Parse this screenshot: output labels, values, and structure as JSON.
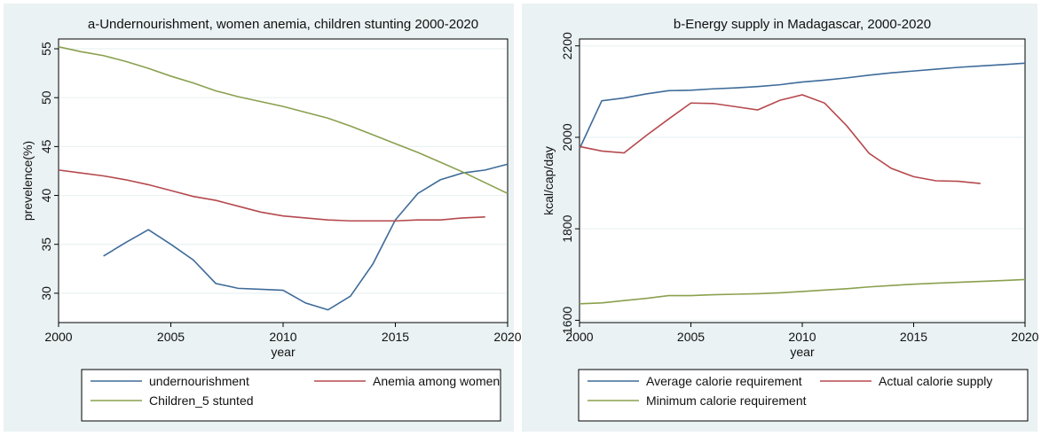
{
  "chart_data": [
    {
      "type": "line",
      "title": "a-Undernourishment, women anemia, children stunting 2000-2020",
      "xlabel": "year",
      "ylabel": "prevelence(%)",
      "xlim": [
        2000,
        2020
      ],
      "ylim": [
        27,
        56
      ],
      "xticks": [
        2000,
        2005,
        2010,
        2015,
        2020
      ],
      "yticks": [
        30,
        35,
        40,
        45,
        50,
        55
      ],
      "grid": true,
      "legend_position": "bottom",
      "legend_columns": 2,
      "series": [
        {
          "name": "undernourishment",
          "color": "#3e6b99",
          "x": [
            2002,
            2003,
            2004,
            2005,
            2006,
            2007,
            2008,
            2009,
            2010,
            2011,
            2012,
            2013,
            2014,
            2015,
            2016,
            2017,
            2018,
            2019,
            2020
          ],
          "y": [
            33.8,
            35.2,
            36.5,
            35.0,
            33.4,
            31.0,
            30.5,
            30.4,
            30.3,
            29.0,
            28.3,
            29.7,
            33.0,
            37.5,
            40.2,
            41.6,
            42.3,
            42.6,
            43.2
          ]
        },
        {
          "name": "Anemia among women",
          "color": "#b5494e",
          "x": [
            2000,
            2001,
            2002,
            2003,
            2004,
            2005,
            2006,
            2007,
            2008,
            2009,
            2010,
            2011,
            2012,
            2013,
            2014,
            2015,
            2016,
            2017,
            2018,
            2019
          ],
          "y": [
            42.6,
            42.3,
            42.0,
            41.6,
            41.1,
            40.5,
            39.9,
            39.5,
            38.9,
            38.3,
            37.9,
            37.7,
            37.5,
            37.4,
            37.4,
            37.4,
            37.5,
            37.5,
            37.7,
            37.8
          ]
        },
        {
          "name": "Children_5 stunted",
          "color": "#8aa04e",
          "x": [
            2000,
            2001,
            2002,
            2003,
            2004,
            2005,
            2006,
            2007,
            2008,
            2009,
            2010,
            2011,
            2012,
            2013,
            2014,
            2015,
            2016,
            2017,
            2018,
            2019,
            2020
          ],
          "y": [
            55.2,
            54.7,
            54.3,
            53.7,
            53.0,
            52.2,
            51.5,
            50.7,
            50.1,
            49.6,
            49.1,
            48.5,
            47.9,
            47.1,
            46.2,
            45.3,
            44.4,
            43.4,
            42.4,
            41.3,
            40.2
          ]
        }
      ]
    },
    {
      "type": "line",
      "title": "b-Energy supply in Madagascar, 2000-2020",
      "xlabel": "year",
      "ylabel": "kcal/cap/day",
      "xlim": [
        2000,
        2020
      ],
      "ylim": [
        1595,
        2215
      ],
      "xticks": [
        2000,
        2005,
        2010,
        2015,
        2020
      ],
      "yticks": [
        1600,
        1800,
        2000,
        2200
      ],
      "grid": true,
      "legend_position": "bottom",
      "legend_columns": 2,
      "series": [
        {
          "name": "Average calorie requirement",
          "color": "#3e6b99",
          "x": [
            2000,
            2001,
            2002,
            2003,
            2004,
            2005,
            2006,
            2007,
            2008,
            2009,
            2010,
            2011,
            2012,
            2013,
            2014,
            2015,
            2016,
            2017,
            2018,
            2019,
            2020
          ],
          "y": [
            1975,
            2080,
            2086,
            2095,
            2102,
            2103,
            2106,
            2108,
            2111,
            2115,
            2121,
            2125,
            2130,
            2136,
            2141,
            2145,
            2149,
            2153,
            2156,
            2159,
            2162
          ]
        },
        {
          "name": "Actual calorie supply",
          "color": "#b5494e",
          "x": [
            2000,
            2001,
            2002,
            2003,
            2004,
            2005,
            2006,
            2007,
            2008,
            2009,
            2010,
            2011,
            2012,
            2013,
            2014,
            2015,
            2016,
            2017,
            2018
          ],
          "y": [
            1980,
            1970,
            1966,
            2004,
            2040,
            2075,
            2074,
            2067,
            2060,
            2081,
            2093,
            2075,
            2025,
            1965,
            1932,
            1914,
            1905,
            1904,
            1899
          ]
        },
        {
          "name": "Minimum calorie requirement",
          "color": "#8aa04e",
          "x": [
            2000,
            2001,
            2002,
            2003,
            2004,
            2005,
            2006,
            2007,
            2008,
            2009,
            2010,
            2011,
            2012,
            2013,
            2014,
            2015,
            2016,
            2017,
            2018,
            2019,
            2020
          ],
          "y": [
            1636,
            1638,
            1643,
            1648,
            1654,
            1654,
            1656,
            1657,
            1658,
            1660,
            1663,
            1666,
            1669,
            1673,
            1676,
            1679,
            1681,
            1683,
            1685,
            1687,
            1689
          ]
        }
      ]
    }
  ]
}
